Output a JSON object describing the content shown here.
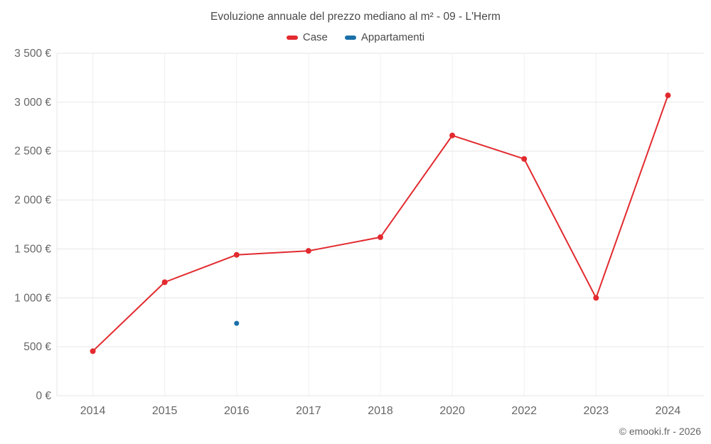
{
  "chart_data": {
    "type": "line",
    "title": "Evoluzione annuale del prezzo mediano al m² - 09 - L'Herm",
    "categories": [
      "2014",
      "2015",
      "2016",
      "2017",
      "2018",
      "2020",
      "2022",
      "2023",
      "2024"
    ],
    "series": [
      {
        "name": "Case",
        "color": "#e22a2f",
        "values": [
          455,
          1160,
          1440,
          1480,
          1620,
          2660,
          2420,
          1000,
          3070
        ]
      },
      {
        "name": "Appartamenti",
        "color": "#1a6fa8",
        "values": [
          null,
          null,
          740,
          null,
          null,
          null,
          null,
          null,
          null
        ]
      }
    ],
    "ylim": [
      0,
      3500
    ],
    "yticks": [
      0,
      500,
      1000,
      1500,
      2000,
      2500,
      3000,
      3500
    ],
    "ytick_labels": [
      "0 €",
      "500 €",
      "1 000 €",
      "1 500 €",
      "2 000 €",
      "2 500 €",
      "3 000 €",
      "3 500 €"
    ],
    "grid": true,
    "legend_position": "top",
    "footer": "© emooki.fr - 2026"
  },
  "colors": {
    "grid_h": "#e6e6e6",
    "grid_v": "#f0f0f0",
    "axis_text": "#666666",
    "title_text": "#4a4a4a"
  }
}
